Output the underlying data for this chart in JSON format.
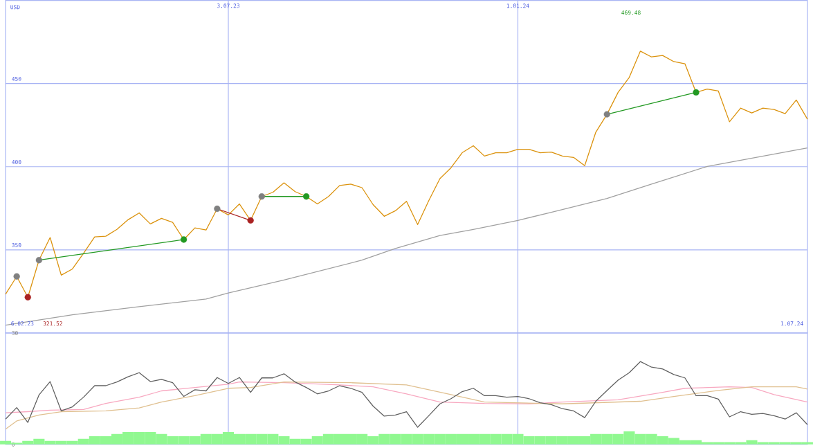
{
  "chart_data": [
    {
      "type": "line",
      "ylabel": "USD",
      "xlim": [
        "2023-02-13",
        "2024-07-01"
      ],
      "ylim": [
        300,
        500
      ],
      "yticks": [
        350,
        400,
        450
      ],
      "xticks": [
        {
          "value": "2023-07-03",
          "label": "3.07.23"
        },
        {
          "value": "2024-01-01",
          "label": "1.01.24"
        }
      ],
      "grid": true,
      "annotations": [
        "6.02.23",
        "321.52",
        "1.07.24",
        "469.48"
      ],
      "x": [
        "2023-02-13",
        "2023-02-20",
        "2023-02-27",
        "2023-03-06",
        "2023-03-13",
        "2023-03-20",
        "2023-03-27",
        "2023-04-03",
        "2023-04-10",
        "2023-04-17",
        "2023-04-24",
        "2023-05-01",
        "2023-05-08",
        "2023-05-15",
        "2023-05-22",
        "2023-05-29",
        "2023-06-05",
        "2023-06-12",
        "2023-06-19",
        "2023-06-26",
        "2023-07-03",
        "2023-07-10",
        "2023-07-17",
        "2023-07-24",
        "2023-07-31",
        "2023-08-07",
        "2023-08-14",
        "2023-08-21",
        "2023-08-28",
        "2023-09-04",
        "2023-09-11",
        "2023-09-18",
        "2023-09-25",
        "2023-10-02",
        "2023-10-09",
        "2023-10-16",
        "2023-10-23",
        "2023-10-30",
        "2023-11-06",
        "2023-11-13",
        "2023-11-20",
        "2023-11-27",
        "2023-12-04",
        "2023-12-11",
        "2023-12-18",
        "2023-12-25",
        "2024-01-01",
        "2024-01-08",
        "2024-01-15",
        "2024-01-22",
        "2024-01-29",
        "2024-02-05",
        "2024-02-12",
        "2024-02-19",
        "2024-02-26",
        "2024-03-04",
        "2024-03-11",
        "2024-03-18",
        "2024-03-25",
        "2024-04-01",
        "2024-04-08",
        "2024-04-15",
        "2024-04-22",
        "2024-04-29",
        "2024-05-06",
        "2024-05-13",
        "2024-05-20",
        "2024-05-27",
        "2024-06-03",
        "2024-06-10",
        "2024-06-17",
        "2024-06-24",
        "2024-07-01"
      ],
      "series": [
        {
          "color": "#a0a0a0",
          "x": [
            "2023-02-13",
            "2023-03-27",
            "2023-05-08",
            "2023-06-19",
            "2023-07-03",
            "2023-08-07",
            "2023-09-25",
            "2023-10-16",
            "2023-11-13",
            "2023-12-04",
            "2024-01-01",
            "2024-01-22",
            "2024-02-26",
            "2024-03-25",
            "2024-04-29",
            "2024-07-01"
          ],
          "values": [
            304.7,
            310.9,
            315.8,
            320.4,
            324.1,
            331.9,
            343.8,
            350.8,
            358.6,
            362.3,
            367.7,
            372.6,
            380.9,
            389.5,
            400.2,
            411.3
          ]
        },
        {
          "color": "#db920c",
          "values": [
            323.3,
            334.0,
            321.5,
            343.8,
            357.4,
            334.8,
            338.5,
            347.9,
            357.8,
            358.2,
            362.3,
            368.1,
            372.2,
            365.6,
            368.9,
            366.5,
            356.2,
            363.2,
            361.9,
            374.7,
            371.0,
            377.6,
            367.7,
            382.1,
            384.6,
            390.3,
            385.0,
            382.1,
            377.6,
            382.1,
            388.7,
            389.5,
            387.4,
            377.2,
            370.2,
            373.5,
            379.2,
            365.2,
            379.6,
            392.8,
            399.4,
            408.4,
            412.6,
            406.4,
            408.4,
            408.4,
            410.5,
            410.5,
            408.4,
            408.8,
            406.4,
            405.6,
            400.6,
            420.8,
            431.5,
            444.7,
            453.7,
            469.5,
            466.0,
            466.9,
            463.2,
            461.9,
            444.7,
            446.7,
            445.5,
            427.0,
            435.2,
            432.3,
            435.2,
            434.4,
            431.9,
            440.1,
            428.6
          ]
        },
        {
          "color": "#229922",
          "x": [
            "2023-03-06",
            "2023-06-05"
          ],
          "values": [
            343.8,
            356.2
          ]
        },
        {
          "color": "#aa2222",
          "x": [
            "2023-06-26",
            "2023-07-17"
          ],
          "values": [
            374.7,
            367.7
          ]
        },
        {
          "color": "#229922",
          "x": [
            "2023-07-24",
            "2023-08-21"
          ],
          "values": [
            382.1,
            382.1
          ]
        },
        {
          "color": "#229922",
          "x": [
            "2024-02-26",
            "2024-04-22"
          ],
          "values": [
            431.5,
            444.7
          ]
        },
        {
          "type": "scatter",
          "marker": "circle",
          "color": "#808080",
          "x": [
            "2023-02-20",
            "2023-03-06",
            "2023-06-26",
            "2023-07-24",
            "2024-02-26"
          ],
          "values": [
            334.0,
            343.8,
            374.7,
            382.1,
            431.5
          ]
        },
        {
          "type": "scatter",
          "marker": "circle",
          "color": "#229922",
          "x": [
            "2023-06-05",
            "2023-08-21",
            "2024-04-22"
          ],
          "values": [
            356.2,
            382.1,
            444.7
          ]
        },
        {
          "type": "scatter",
          "marker": "circle",
          "color": "#aa2222",
          "x": [
            "2023-02-27",
            "2023-07-17"
          ],
          "values": [
            321.5,
            367.7
          ]
        }
      ]
    },
    {
      "type": "line",
      "xlim": [
        "2023-02-13",
        "2024-07-01"
      ],
      "ylim": [
        0,
        30
      ],
      "yticks": [
        0,
        30
      ],
      "xticks": [
        {
          "value": "2023-07-03",
          "label": null
        },
        {
          "value": "2024-01-01",
          "label": null
        }
      ],
      "grid": "x",
      "tick_labels": "y",
      "x": [
        "2023-02-13",
        "2023-02-20",
        "2023-02-27",
        "2023-03-06",
        "2023-03-13",
        "2023-03-20",
        "2023-03-27",
        "2023-04-03",
        "2023-04-10",
        "2023-04-17",
        "2023-04-24",
        "2023-05-01",
        "2023-05-08",
        "2023-05-15",
        "2023-05-22",
        "2023-05-29",
        "2023-06-05",
        "2023-06-12",
        "2023-06-19",
        "2023-06-26",
        "2023-07-03",
        "2023-07-10",
        "2023-07-17",
        "2023-07-24",
        "2023-07-31",
        "2023-08-07",
        "2023-08-14",
        "2023-08-21",
        "2023-08-28",
        "2023-09-04",
        "2023-09-11",
        "2023-09-18",
        "2023-09-25",
        "2023-10-02",
        "2023-10-09",
        "2023-10-16",
        "2023-10-23",
        "2023-10-30",
        "2023-11-06",
        "2023-11-13",
        "2023-11-20",
        "2023-11-27",
        "2023-12-04",
        "2023-12-11",
        "2023-12-18",
        "2023-12-25",
        "2024-01-01",
        "2024-01-08",
        "2024-01-15",
        "2024-01-22",
        "2024-01-29",
        "2024-02-05",
        "2024-02-12",
        "2024-02-19",
        "2024-02-26",
        "2024-03-04",
        "2024-03-11",
        "2024-03-18",
        "2024-03-25",
        "2024-04-01",
        "2024-04-08",
        "2024-04-15",
        "2024-04-22",
        "2024-04-29",
        "2024-05-06",
        "2024-05-13",
        "2024-05-20",
        "2024-05-27",
        "2024-06-03",
        "2024-06-10",
        "2024-06-17",
        "2024-06-24",
        "2024-07-01"
      ],
      "series": [
        {
          "type": "bar",
          "color": "#90f890",
          "values": [
            0.9,
            0.4,
            0.9,
            1.5,
            0.9,
            0.9,
            0.9,
            1.5,
            2.2,
            2.2,
            2.8,
            3.3,
            3.3,
            3.3,
            2.8,
            2.2,
            2.2,
            2.2,
            2.8,
            2.8,
            3.3,
            2.8,
            2.8,
            2.8,
            2.8,
            2.2,
            1.5,
            1.5,
            2.2,
            2.8,
            2.8,
            2.8,
            2.8,
            2.2,
            2.8,
            2.8,
            2.8,
            2.8,
            2.8,
            2.8,
            2.8,
            2.8,
            2.8,
            2.8,
            2.8,
            2.8,
            2.8,
            2.2,
            2.2,
            2.2,
            2.2,
            2.2,
            2.2,
            2.8,
            2.8,
            2.8,
            3.5,
            2.8,
            2.8,
            2.2,
            1.7,
            1.1,
            1.1,
            0.6,
            0.6,
            0.6,
            0.6,
            1.1,
            0.6,
            0.6,
            0.6,
            0.6,
            0.6
          ]
        },
        {
          "color": "#f8a8c0",
          "x": [
            "2023-02-13",
            "2023-02-27",
            "2023-03-13",
            "2023-04-03",
            "2023-04-17",
            "2023-05-08",
            "2023-05-22",
            "2023-06-12",
            "2023-07-03",
            "2023-07-10",
            "2023-08-07",
            "2023-09-11",
            "2023-10-02",
            "2023-10-23",
            "2023-11-13",
            "2023-12-11",
            "2024-01-08",
            "2024-01-29",
            "2024-03-04",
            "2024-04-01",
            "2024-04-15",
            "2024-05-13",
            "2024-05-27",
            "2024-06-10",
            "2024-07-01"
          ],
          "values": [
            8.5,
            8.8,
            9.2,
            9.4,
            11.0,
            12.7,
            14.4,
            15.3,
            16.2,
            16.8,
            16.6,
            16.0,
            15.5,
            13.6,
            11.4,
            11.0,
            10.9,
            11.4,
            12.0,
            14.0,
            15.1,
            15.5,
            15.3,
            13.4,
            11.4
          ]
        },
        {
          "color": "#e0c090",
          "x": [
            "2023-02-13",
            "2023-02-20",
            "2023-03-06",
            "2023-03-20",
            "2023-04-17",
            "2023-05-08",
            "2023-05-22",
            "2023-06-12",
            "2023-07-03",
            "2023-07-17",
            "2023-08-07",
            "2023-09-18",
            "2023-10-23",
            "2023-11-20",
            "2023-12-11",
            "2024-01-29",
            "2024-03-18",
            "2024-04-08",
            "2024-05-06",
            "2024-05-27",
            "2024-06-24",
            "2024-07-01"
          ],
          "values": [
            4.1,
            6.3,
            7.9,
            8.8,
            9.0,
            9.8,
            11.4,
            13.1,
            15.1,
            15.3,
            16.8,
            16.6,
            16.0,
            13.4,
            11.4,
            10.9,
            11.6,
            12.9,
            14.5,
            15.5,
            15.5,
            14.9
          ]
        },
        {
          "color": "#606060",
          "values": [
            6.8,
            9.9,
            5.9,
            13.3,
            16.9,
            9.0,
            10.1,
            12.7,
            15.8,
            15.8,
            16.8,
            18.2,
            19.3,
            16.9,
            17.5,
            16.6,
            12.9,
            14.7,
            14.4,
            18.0,
            16.4,
            18.0,
            14.0,
            17.9,
            17.9,
            19.0,
            16.8,
            15.3,
            13.6,
            14.4,
            15.8,
            15.1,
            14.0,
            10.3,
            7.6,
            7.9,
            8.8,
            4.6,
            7.7,
            10.9,
            12.3,
            14.2,
            15.1,
            13.1,
            13.1,
            12.7,
            12.9,
            12.3,
            11.2,
            10.7,
            9.6,
            9.0,
            7.2,
            11.6,
            14.5,
            17.3,
            19.3,
            22.3,
            20.8,
            20.3,
            18.8,
            17.9,
            13.1,
            13.1,
            12.2,
            7.4,
            8.8,
            8.1,
            8.3,
            7.7,
            6.8,
            8.5,
            5.3
          ]
        }
      ]
    }
  ]
}
